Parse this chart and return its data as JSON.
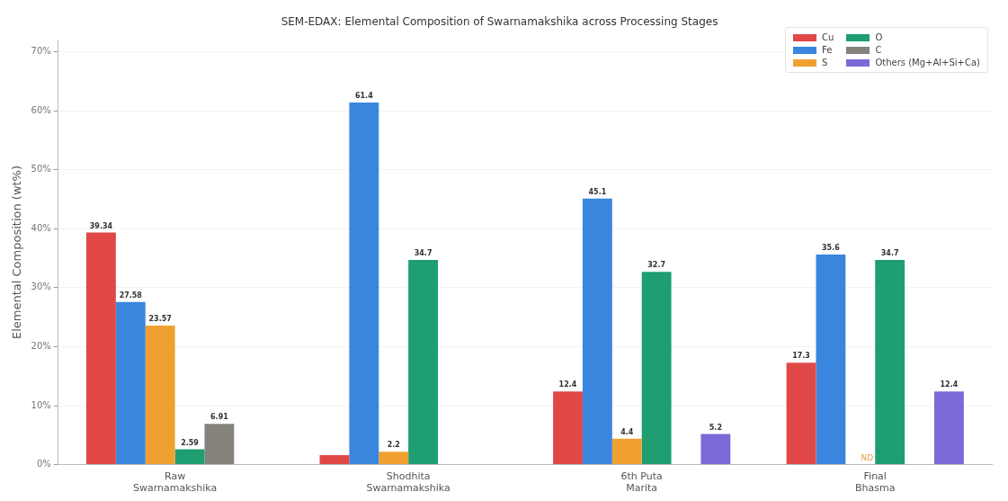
{
  "chart_data": {
    "type": "bar",
    "title": "SEM-EDAX: Elemental Composition of Swarnamakshika across Processing Stages",
    "ylabel": "Elemental Composition (wt%)",
    "categories": [
      "Raw\nSwarnamakshika",
      "Shodhita\nSwarnamakshika",
      "6th Puta\nMarita",
      "Final\nBhasma"
    ],
    "series": [
      {
        "name": "Cu",
        "color": "#e04848",
        "values": [
          39.34,
          1.6,
          12.4,
          17.3
        ],
        "value_labels": [
          "39.34",
          null,
          "12.4",
          "17.3"
        ]
      },
      {
        "name": "Fe",
        "color": "#3a86de",
        "values": [
          27.58,
          61.4,
          45.1,
          35.6
        ],
        "value_labels": [
          "27.58",
          "61.4",
          "45.1",
          "35.6"
        ]
      },
      {
        "name": "S",
        "color": "#f0a030",
        "values": [
          23.57,
          2.2,
          4.4,
          null
        ],
        "value_labels": [
          "23.57",
          "2.2",
          "4.4",
          null
        ]
      },
      {
        "name": "O",
        "color": "#1f9e72",
        "values": [
          2.59,
          34.7,
          32.7,
          34.7
        ],
        "value_labels": [
          "2.59",
          "34.7",
          "32.7",
          "34.7"
        ]
      },
      {
        "name": "C",
        "color": "#85837c",
        "values": [
          6.91,
          null,
          null,
          null
        ],
        "value_labels": [
          "6.91",
          null,
          null,
          null
        ]
      },
      {
        "name": "Others (Mg+Al+Si+Ca)",
        "color": "#7b6ad8",
        "values": [
          null,
          null,
          5.2,
          12.4
        ],
        "value_labels": [
          null,
          null,
          "5.2",
          "12.4"
        ]
      }
    ],
    "ylim": [
      0,
      72
    ],
    "yticks": [
      {
        "value": 0,
        "label": "0%"
      },
      {
        "value": 10,
        "label": "10%"
      },
      {
        "value": 20,
        "label": "20%"
      },
      {
        "value": 30,
        "label": "30%"
      },
      {
        "value": 40,
        "label": "40%"
      },
      {
        "value": 50,
        "label": "50%"
      },
      {
        "value": 60,
        "label": "60%"
      },
      {
        "value": 70,
        "label": "70%"
      }
    ],
    "annotations": [
      {
        "text": "ND",
        "x": "Final\nBhasma",
        "y": 0
      }
    ],
    "grid": "y",
    "legend": "top right"
  }
}
